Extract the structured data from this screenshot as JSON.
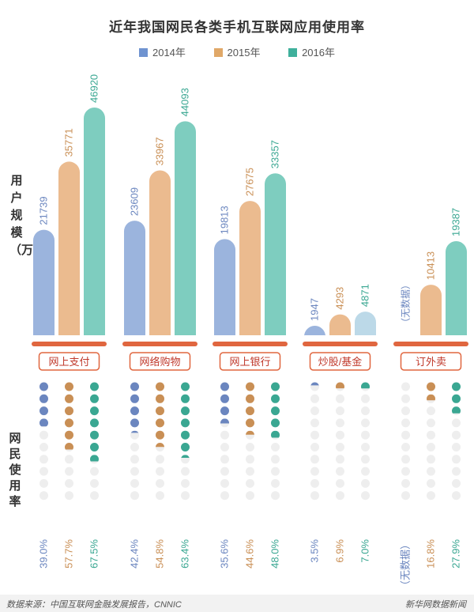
{
  "page": {
    "title": "近年我国网民各类手机互联网应用使用率",
    "ylabel_top": "用户规模（万）",
    "ylabel_bottom": "网民使用率",
    "source": "数据来源：中国互联网金融发展报告，CNNIC",
    "credit": "新华网数据新闻",
    "no_data_label": "无数据"
  },
  "colors": {
    "y2014": "#9bb4dd",
    "y2015": "#ebbb8f",
    "y2016": "#7ecdbf",
    "y2014_pale": "#bcd9e8",
    "accent": "#e0663f",
    "dot_empty": "#eeeeee",
    "text2014": "#6b86bf",
    "text2015": "#c98f55",
    "text2016": "#3aa792"
  },
  "chart_data": {
    "type": "bar",
    "title": "近年我国网民各类手机互联网应用使用率",
    "ylabel": "用户规模（万）",
    "categories": [
      "网上支付",
      "网络购物",
      "网上银行",
      "炒股/基金",
      "订外卖"
    ],
    "series": [
      {
        "name": "2014年",
        "values": [
          21739,
          23609,
          19813,
          1947,
          null
        ],
        "rates": [
          39.0,
          42.4,
          35.6,
          3.5,
          null
        ]
      },
      {
        "name": "2015年",
        "values": [
          35771,
          33967,
          27675,
          4293,
          10413
        ],
        "rates": [
          57.7,
          54.8,
          44.6,
          6.9,
          16.8
        ]
      },
      {
        "name": "2016年",
        "values": [
          46920,
          44093,
          33357,
          4871,
          19387
        ],
        "rates": [
          67.5,
          63.4,
          48.0,
          7.0,
          27.9
        ]
      }
    ],
    "value_labels": [
      [
        "21739",
        "35771",
        "46920"
      ],
      [
        "23609",
        "33967",
        "44093"
      ],
      [
        "19813",
        "27675",
        "33357"
      ],
      [
        "1947",
        "4293",
        "4871"
      ],
      [
        "无数据",
        "10413",
        "19387"
      ]
    ],
    "rate_labels": [
      [
        "39.0%",
        "57.7%",
        "67.5%"
      ],
      [
        "42.4%",
        "54.8%",
        "63.4%"
      ],
      [
        "35.6%",
        "44.6%",
        "48.0%"
      ],
      [
        "3.5%",
        "6.9%",
        "7.0%"
      ],
      [
        "无数据",
        "16.8%",
        "27.9%"
      ]
    ],
    "legend_position": "top-center",
    "dot_unit_percent": 10
  }
}
